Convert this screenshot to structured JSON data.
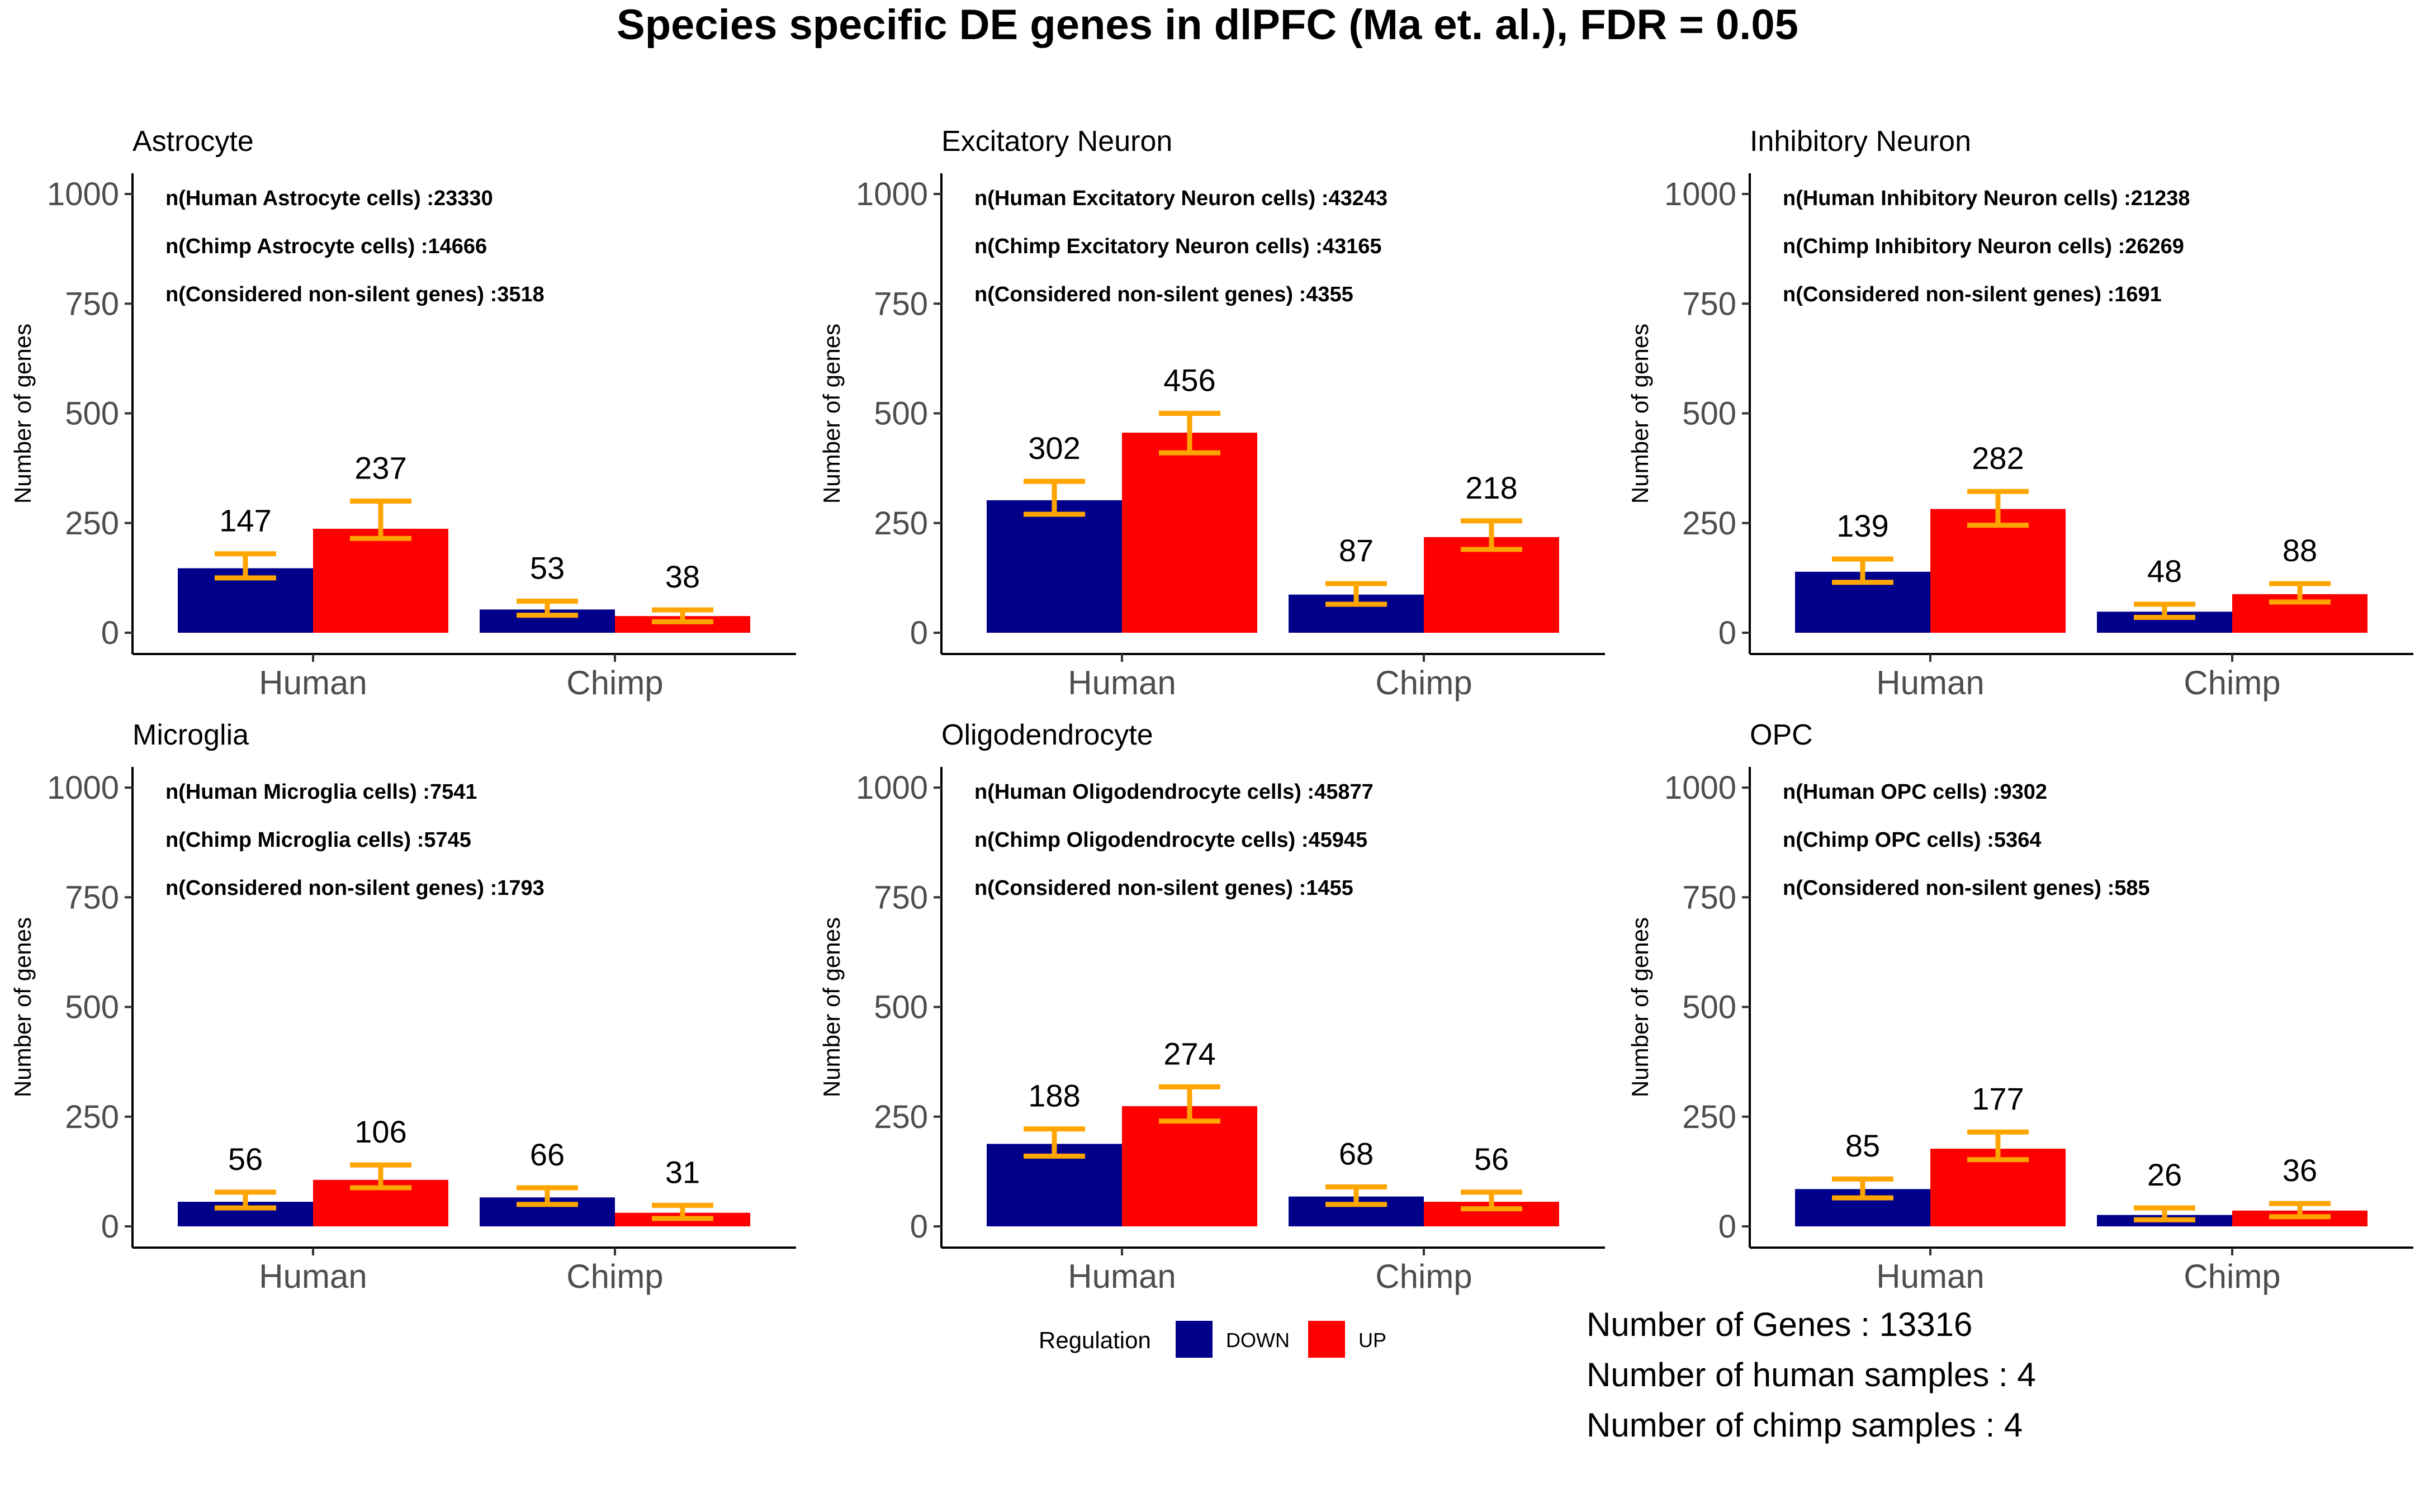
{
  "title": "Species specific DE genes in dlPFC (Ma et. al.), FDR = 0.05",
  "colors": {
    "DOWN": "#00008b",
    "UP": "#ff0000",
    "error_bar": "#ffa500"
  },
  "chart_data": [
    {
      "type": "bar",
      "title": "Astrocyte",
      "ylabel": "Number of genes",
      "ylim": [
        0,
        1000
      ],
      "yticks": [
        "0",
        "250",
        "500",
        "750",
        "1000"
      ],
      "categories": [
        "Human",
        "Chimp"
      ],
      "series": [
        {
          "name": "DOWN",
          "values": [
            147,
            53
          ],
          "labels": [
            "147",
            "53"
          ],
          "err_low": [
            125,
            40
          ],
          "err_high": [
            180,
            72
          ]
        },
        {
          "name": "UP",
          "values": [
            237,
            38
          ],
          "labels": [
            "237",
            "38"
          ],
          "err_low": [
            215,
            25
          ],
          "err_high": [
            300,
            52
          ]
        }
      ],
      "annotations": [
        "n(Human Astrocyte cells) :23330",
        "n(Chimp Astrocyte cells)  :14666",
        "n(Considered non-silent genes) :3518"
      ]
    },
    {
      "type": "bar",
      "title": "Excitatory Neuron",
      "ylabel": "Number of genes",
      "ylim": [
        0,
        1000
      ],
      "yticks": [
        "0",
        "250",
        "500",
        "750",
        "1000"
      ],
      "categories": [
        "Human",
        "Chimp"
      ],
      "series": [
        {
          "name": "DOWN",
          "values": [
            302,
            87
          ],
          "labels": [
            "302",
            "87"
          ],
          "err_low": [
            270,
            65
          ],
          "err_high": [
            345,
            112
          ]
        },
        {
          "name": "UP",
          "values": [
            456,
            218
          ],
          "labels": [
            "456",
            "218"
          ],
          "err_low": [
            410,
            190
          ],
          "err_high": [
            500,
            255
          ]
        }
      ],
      "annotations": [
        "n(Human Excitatory Neuron cells) :43243",
        "n(Chimp Excitatory Neuron cells)  :43165",
        "n(Considered non-silent genes) :4355"
      ]
    },
    {
      "type": "bar",
      "title": "Inhibitory Neuron",
      "ylabel": "Number of genes",
      "ylim": [
        0,
        1000
      ],
      "yticks": [
        "0",
        "250",
        "500",
        "750",
        "1000"
      ],
      "categories": [
        "Human",
        "Chimp"
      ],
      "series": [
        {
          "name": "DOWN",
          "values": [
            139,
            48
          ],
          "labels": [
            "139",
            "48"
          ],
          "err_low": [
            115,
            35
          ],
          "err_high": [
            168,
            65
          ]
        },
        {
          "name": "UP",
          "values": [
            282,
            88
          ],
          "labels": [
            "282",
            "88"
          ],
          "err_low": [
            245,
            70
          ],
          "err_high": [
            322,
            112
          ]
        }
      ],
      "annotations": [
        "n(Human Inhibitory Neuron cells) :21238",
        "n(Chimp Inhibitory Neuron cells)  :26269",
        "n(Considered non-silent genes) :1691"
      ]
    },
    {
      "type": "bar",
      "title": "Microglia",
      "ylabel": "Number of genes",
      "ylim": [
        0,
        1000
      ],
      "yticks": [
        "0",
        "250",
        "500",
        "750",
        "1000"
      ],
      "categories": [
        "Human",
        "Chimp"
      ],
      "series": [
        {
          "name": "DOWN",
          "values": [
            56,
            66
          ],
          "labels": [
            "56",
            "66"
          ],
          "err_low": [
            42,
            50
          ],
          "err_high": [
            78,
            88
          ]
        },
        {
          "name": "UP",
          "values": [
            106,
            31
          ],
          "labels": [
            "106",
            "31"
          ],
          "err_low": [
            88,
            18
          ],
          "err_high": [
            140,
            48
          ]
        }
      ],
      "annotations": [
        "n(Human Microglia cells) :7541",
        "n(Chimp Microglia cells)  :5745",
        "n(Considered non-silent genes) :1793"
      ]
    },
    {
      "type": "bar",
      "title": "Oligodendrocyte",
      "ylabel": "Number of genes",
      "ylim": [
        0,
        1000
      ],
      "yticks": [
        "0",
        "250",
        "500",
        "750",
        "1000"
      ],
      "categories": [
        "Human",
        "Chimp"
      ],
      "series": [
        {
          "name": "DOWN",
          "values": [
            188,
            68
          ],
          "labels": [
            "188",
            "68"
          ],
          "err_low": [
            160,
            50
          ],
          "err_high": [
            222,
            90
          ]
        },
        {
          "name": "UP",
          "values": [
            274,
            56
          ],
          "labels": [
            "274",
            "56"
          ],
          "err_low": [
            240,
            40
          ],
          "err_high": [
            318,
            78
          ]
        }
      ],
      "annotations": [
        "n(Human Oligodendrocyte cells) :45877",
        "n(Chimp Oligodendrocyte cells)  :45945",
        "n(Considered non-silent genes) :1455"
      ]
    },
    {
      "type": "bar",
      "title": "OPC",
      "ylabel": "Number of genes",
      "ylim": [
        0,
        1000
      ],
      "yticks": [
        "0",
        "250",
        "500",
        "750",
        "1000"
      ],
      "categories": [
        "Human",
        "Chimp"
      ],
      "series": [
        {
          "name": "DOWN",
          "values": [
            85,
            26
          ],
          "labels": [
            "85",
            "26"
          ],
          "err_low": [
            65,
            15
          ],
          "err_high": [
            108,
            42
          ]
        },
        {
          "name": "UP",
          "values": [
            177,
            36
          ],
          "labels": [
            "177",
            "36"
          ],
          "err_low": [
            152,
            22
          ],
          "err_high": [
            215,
            52
          ]
        }
      ],
      "annotations": [
        "n(Human OPC cells) :9302",
        "n(Chimp OPC cells)  :5364",
        "n(Considered non-silent genes) :585"
      ]
    }
  ],
  "legend": {
    "title": "Regulation",
    "items": [
      "DOWN",
      "UP"
    ]
  },
  "notes": [
    "Number of Genes : 13316",
    "Number of human samples : 4",
    "Number of chimp samples : 4"
  ]
}
